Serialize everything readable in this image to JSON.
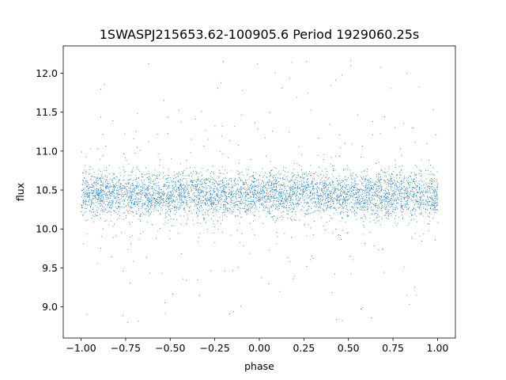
{
  "chart_data": {
    "type": "scatter",
    "title": "1SWASPJ215653.62-100905.6 Period 1929060.25s",
    "xlabel": "phase",
    "ylabel": "flux",
    "xlim": [
      -1.1,
      1.1
    ],
    "ylim": [
      8.6,
      12.35
    ],
    "xticks": [
      -1.0,
      -0.75,
      -0.5,
      -0.25,
      0.0,
      0.25,
      0.5,
      0.75,
      1.0
    ],
    "xtick_labels": [
      "−1.00",
      "−0.75",
      "−0.50",
      "−0.25",
      "0.00",
      "0.25",
      "0.50",
      "0.75",
      "1.00"
    ],
    "yticks": [
      9.0,
      9.5,
      10.0,
      10.5,
      11.0,
      11.5,
      12.0
    ],
    "ytick_labels": [
      "9.0",
      "9.5",
      "10.0",
      "10.5",
      "11.0",
      "11.5",
      "12.0"
    ],
    "grid": false,
    "legend": "none",
    "marker_color": "#1f77b4",
    "series": [
      {
        "x_range": [
          -1.0,
          1.0
        ],
        "y_center": 10.45,
        "y_core_range": [
          9.95,
          10.85
        ],
        "y_full_range": [
          8.77,
          12.18
        ]
      }
    ]
  }
}
